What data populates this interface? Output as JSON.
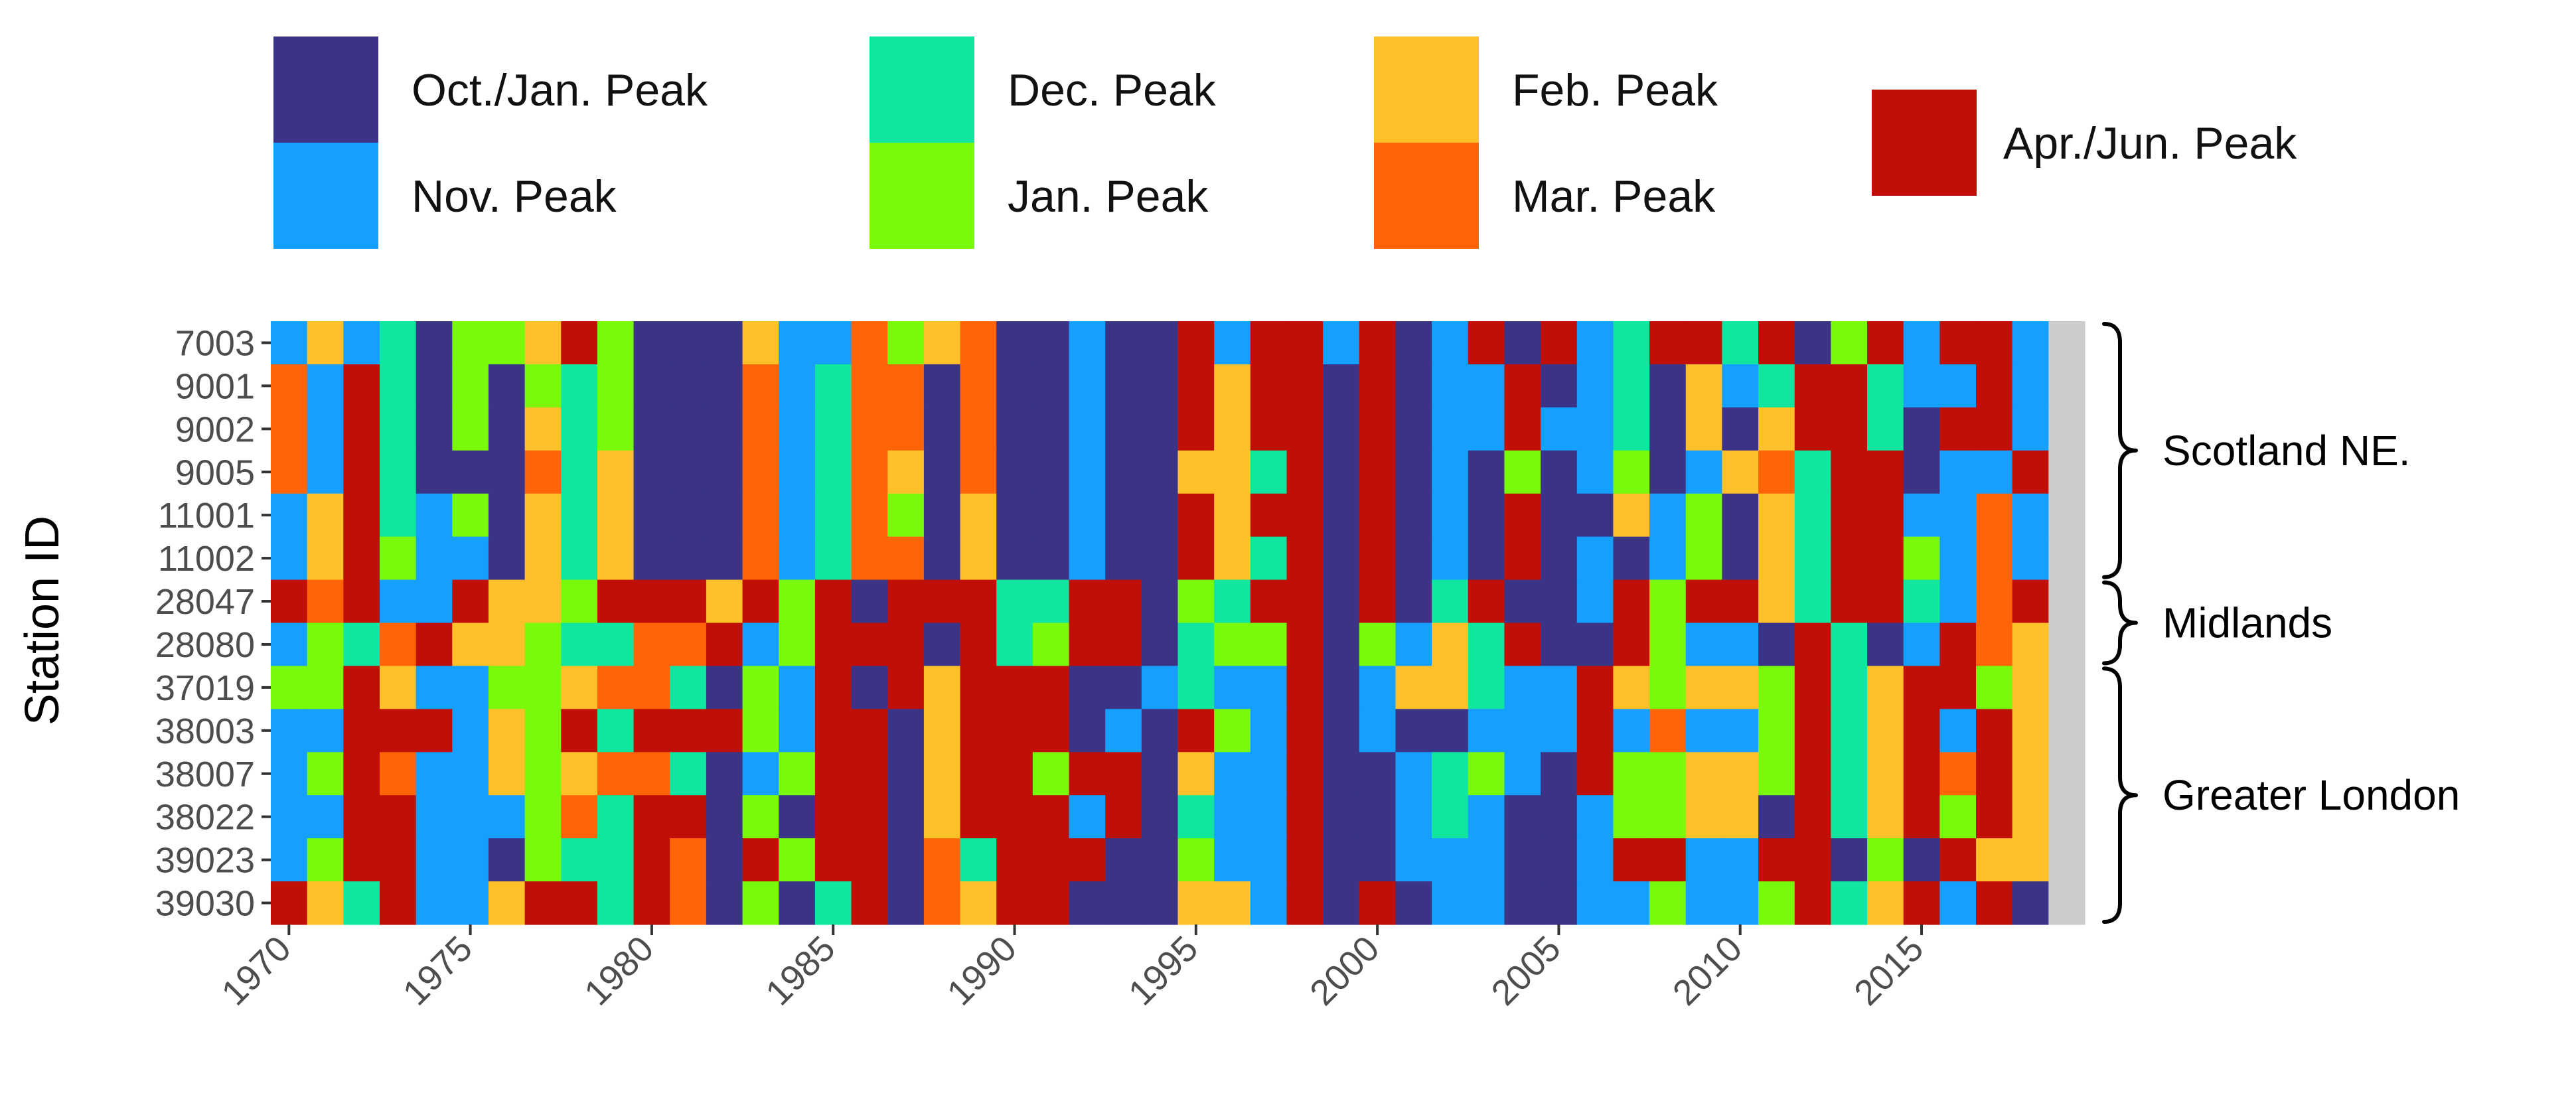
{
  "chart_data": {
    "type": "heatmap",
    "title": "",
    "xlabel": "",
    "ylabel": "Station ID",
    "x_start": 1970,
    "x_end": 2019,
    "x_ticks": [
      1970,
      1975,
      1980,
      1985,
      1990,
      1995,
      2000,
      2005,
      2010,
      2015
    ],
    "stations": [
      "7003",
      "9001",
      "9002",
      "9005",
      "11001",
      "11002",
      "28047",
      "28080",
      "37019",
      "38003",
      "38007",
      "38022",
      "39023",
      "39030"
    ],
    "categories": [
      {
        "code": "O",
        "label": "Oct./Jan. Peak",
        "color": "#3b3486"
      },
      {
        "code": "N",
        "label": "Nov. Peak",
        "color": "#16a0fe"
      },
      {
        "code": "D",
        "label": "Dec. Peak",
        "color": "#10e69f"
      },
      {
        "code": "J",
        "label": "Jan. Peak",
        "color": "#79f90b"
      },
      {
        "code": "F",
        "label": "Feb. Peak",
        "color": "#ffc12a"
      },
      {
        "code": "M",
        "label": "Mar. Peak",
        "color": "#ff6408"
      },
      {
        "code": "A",
        "label": "Apr./Jun. Peak",
        "color": "#c00f06"
      }
    ],
    "grid": [
      "NFNDOJJFAJOOOFNNMJFMOONOOANAANAONAOANDAADAOJANAAN",
      "MNADOJOJDJOOOMNDMMOMOONOOAFAAOAONNAONDOFNDAADNNAN",
      "MNADOJOFDJOOOMNDMMOMOONOOAFAAOAONNANNDOFOFAADOAAN",
      "MNADOOOMDFOOOMNDMFOMOONOOFFDAOAONOJONJONFMDAAONNA",
      "NFADNJOFDFOOOMNDMJOFOONOOAFAAOAONOAOOFNJOFDAANNMN",
      "NFAJNNOFDFOOOMNDMMOFOONOOAFDAOAONOAONONJOFDAAJNMN",
      "AMANNAFFJAAAFAJAOAAADDAAOJDAAOAODAOONAJAAFDAADNMA",
      "NJDMAFFJDDMMANJAAAOADJAAODJJAOJNFDAOOAJNNOADONAMF",
      "JJAFNNJJFMMDOJNAOAFAAAOONDNNAONFFDNNAFJFFJADFAAJF",
      "NNAAANFJADAAAJNAAOFAAAONOAJNAONOONNNANMNNJADFANAF",
      "NJAMNNFJFMMDONJAAOFAAJAAOFNNAOONDJNOAJJFFJADFAMAF",
      "NNAANNNJMDAAOJOAAOFAAANAODNNAOONDNOONJJFFOADFAJAF",
      "NJAANNOJDDAMOAJAAOMDAAAOOJNNAOONNNOONAANNAAOJOAFF",
      "AFDANNFAADAMOJODAOMFAAOOOFFNAOAONNOONNJNNJADFANAO"
    ],
    "legend": [
      [
        "Oct./Jan. Peak",
        "Nov. Peak"
      ],
      [
        "Dec. Peak",
        "Jan. Peak"
      ],
      [
        "Feb. Peak",
        "Mar. Peak"
      ],
      [
        "Apr./Jun. Peak"
      ]
    ],
    "regions": [
      {
        "label": "Scotland NE.",
        "from_station": "7003",
        "to_station": "11002"
      },
      {
        "label": "Midlands",
        "from_station": "28047",
        "to_station": "28080"
      },
      {
        "label": "Greater London",
        "from_station": "37019",
        "to_station": "39030"
      }
    ]
  }
}
